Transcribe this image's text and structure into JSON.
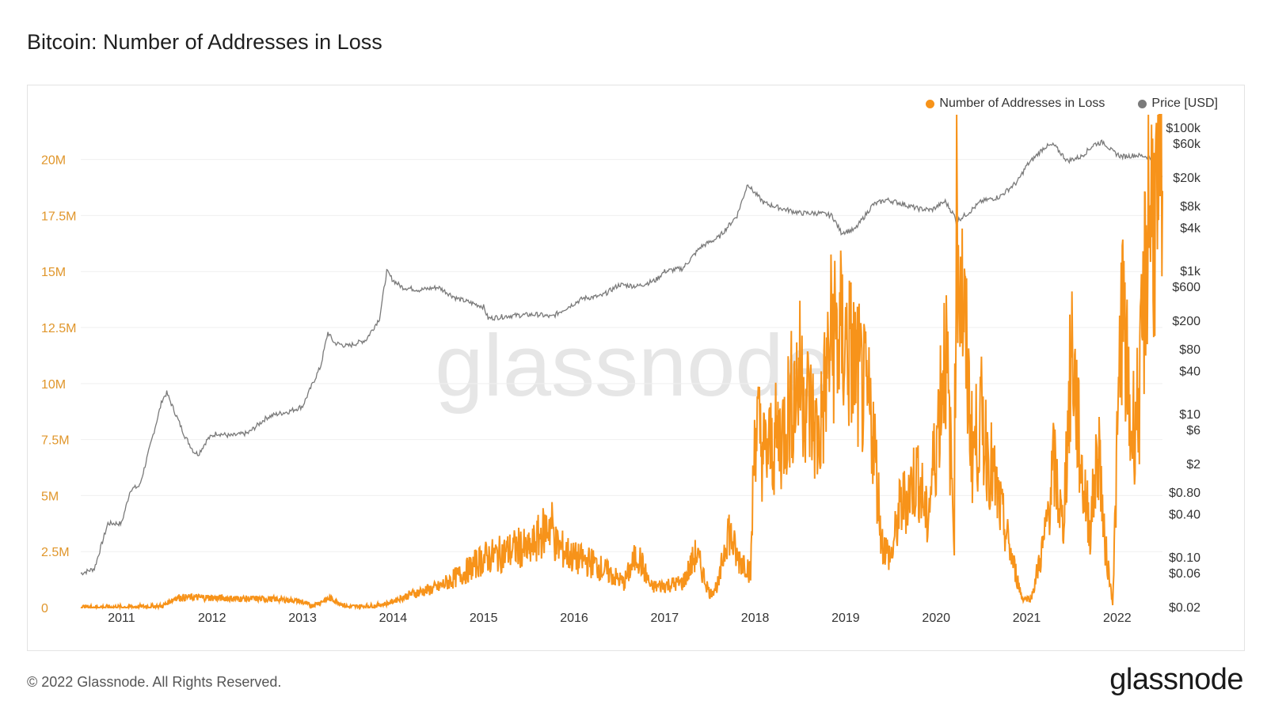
{
  "title": "Bitcoin: Number of Addresses in Loss",
  "footer": "© 2022 Glassnode. All Rights Reserved.",
  "brand": "glassnode",
  "watermark": "glassnode",
  "colors": {
    "loss": "#f7931a",
    "price": "#7a7a7a",
    "lossAxis": "#e0962b",
    "grid": "#efefef"
  },
  "chart_data": {
    "type": "line",
    "title": "Bitcoin: Number of Addresses in Loss",
    "legend_position": "top-right",
    "x_range": [
      2010.55,
      2022.5
    ],
    "x_ticks": [
      "2011",
      "2012",
      "2013",
      "2014",
      "2015",
      "2016",
      "2017",
      "2018",
      "2019",
      "2020",
      "2021",
      "2022"
    ],
    "left_axis": {
      "name": "Number of Addresses in Loss",
      "ylim": [
        0,
        22000000
      ],
      "ticks": [
        {
          "v": 0,
          "label": "0"
        },
        {
          "v": 2500000,
          "label": "2.5M"
        },
        {
          "v": 5000000,
          "label": "5M"
        },
        {
          "v": 7500000,
          "label": "7.5M"
        },
        {
          "v": 10000000,
          "label": "10M"
        },
        {
          "v": 12500000,
          "label": "12.5M"
        },
        {
          "v": 15000000,
          "label": "15M"
        },
        {
          "v": 17500000,
          "label": "17.5M"
        },
        {
          "v": 20000000,
          "label": "20M"
        }
      ]
    },
    "right_axis": {
      "name": "Price [USD]",
      "scale": "log",
      "ylim": [
        0.02,
        100000
      ],
      "ticks": [
        {
          "v": 100000,
          "label": "$100k"
        },
        {
          "v": 60000,
          "label": "$60k"
        },
        {
          "v": 20000,
          "label": "$20k"
        },
        {
          "v": 8000,
          "label": "$8k"
        },
        {
          "v": 4000,
          "label": "$4k"
        },
        {
          "v": 1000,
          "label": "$1k"
        },
        {
          "v": 600,
          "label": "$600"
        },
        {
          "v": 200,
          "label": "$200"
        },
        {
          "v": 80,
          "label": "$80"
        },
        {
          "v": 40,
          "label": "$40"
        },
        {
          "v": 10,
          "label": "$10"
        },
        {
          "v": 6,
          "label": "$6"
        },
        {
          "v": 2,
          "label": "$2"
        },
        {
          "v": 0.8,
          "label": "$0.80"
        },
        {
          "v": 0.4,
          "label": "$0.40"
        },
        {
          "v": 0.1,
          "label": "$0.10"
        },
        {
          "v": 0.06,
          "label": "$0.06"
        },
        {
          "v": 0.02,
          "label": "$0.02"
        }
      ]
    },
    "series": [
      {
        "name": "Number of Addresses in Loss",
        "axis": "left",
        "x": [
          2010.55,
          2011.0,
          2011.45,
          2011.6,
          2011.9,
          2012.3,
          2012.7,
          2012.95,
          2013.1,
          2013.3,
          2013.5,
          2013.8,
          2013.95,
          2014.2,
          2014.5,
          2014.8,
          2015.0,
          2015.2,
          2015.4,
          2015.5,
          2015.7,
          2015.75,
          2015.8,
          2016.0,
          2016.2,
          2016.4,
          2016.55,
          2016.7,
          2016.85,
          2017.0,
          2017.2,
          2017.35,
          2017.5,
          2017.6,
          2017.7,
          2017.8,
          2017.9,
          2017.95,
          2018.0,
          2018.1,
          2018.3,
          2018.4,
          2018.5,
          2018.7,
          2018.85,
          2019.0,
          2019.1,
          2019.3,
          2019.4,
          2019.5,
          2019.6,
          2019.8,
          2019.9,
          2020.0,
          2020.1,
          2020.2,
          2020.22,
          2020.3,
          2020.4,
          2020.5,
          2020.7,
          2020.85,
          2020.95,
          2021.05,
          2021.2,
          2021.3,
          2021.4,
          2021.5,
          2021.6,
          2021.7,
          2021.8,
          2021.85,
          2021.95,
          2022.05,
          2022.15,
          2022.25,
          2022.35,
          2022.45,
          2022.5
        ],
        "values": [
          20000,
          20000,
          60000,
          450000,
          450000,
          400000,
          380000,
          300000,
          80000,
          420000,
          30000,
          80000,
          200000,
          600000,
          900000,
          1600000,
          2200000,
          2400000,
          2700000,
          2500000,
          3600000,
          3800000,
          2800000,
          2200000,
          2000000,
          1500000,
          1100000,
          2400000,
          900000,
          1000000,
          1100000,
          2400000,
          600000,
          1100000,
          3600000,
          2200000,
          2000000,
          1500000,
          8500000,
          6800000,
          7800000,
          9300000,
          10400000,
          7400000,
          12300000,
          11800000,
          10800000,
          8200000,
          2900000,
          2200000,
          4400000,
          6000000,
          3800000,
          7400000,
          11900000,
          3400000,
          17600000,
          13200000,
          7000000,
          8300000,
          4500000,
          2000000,
          400000,
          400000,
          3100000,
          6400000,
          3500000,
          11700000,
          6300000,
          3500000,
          7400000,
          3300000,
          200000,
          13800000,
          7700000,
          9500000,
          18400000,
          17000000,
          18600000
        ]
      },
      {
        "name": "Price [USD]",
        "axis": "right",
        "x": [
          2010.55,
          2010.7,
          2010.85,
          2011.0,
          2011.1,
          2011.2,
          2011.3,
          2011.45,
          2011.5,
          2011.6,
          2011.7,
          2011.8,
          2011.85,
          2011.95,
          2012.05,
          2012.2,
          2012.4,
          2012.6,
          2012.7,
          2012.85,
          2013.0,
          2013.1,
          2013.2,
          2013.28,
          2013.35,
          2013.5,
          2013.7,
          2013.85,
          2013.93,
          2014.0,
          2014.1,
          2014.3,
          2014.5,
          2014.7,
          2014.9,
          2015.0,
          2015.05,
          2015.3,
          2015.6,
          2015.75,
          2015.9,
          2016.1,
          2016.3,
          2016.5,
          2016.7,
          2016.9,
          2017.0,
          2017.2,
          2017.4,
          2017.6,
          2017.8,
          2017.92,
          2017.96,
          2018.1,
          2018.3,
          2018.5,
          2018.7,
          2018.85,
          2018.95,
          2019.1,
          2019.3,
          2019.45,
          2019.6,
          2019.8,
          2019.95,
          2020.1,
          2020.2,
          2020.22,
          2020.35,
          2020.5,
          2020.7,
          2020.9,
          2021.0,
          2021.2,
          2021.3,
          2021.45,
          2021.6,
          2021.75,
          2021.85,
          2021.95,
          2022.05,
          2022.2,
          2022.35,
          2022.45,
          2022.5
        ],
        "values": [
          0.06,
          0.07,
          0.3,
          0.3,
          0.9,
          1.0,
          3.0,
          16,
          20,
          10,
          5,
          3,
          2.8,
          4.5,
          5.5,
          5.0,
          5.5,
          9,
          10,
          11,
          13,
          25,
          47,
          140,
          100,
          90,
          110,
          220,
          1000,
          750,
          600,
          550,
          600,
          420,
          350,
          320,
          220,
          240,
          250,
          230,
          300,
          420,
          450,
          650,
          620,
          750,
          1000,
          1100,
          2200,
          3000,
          6000,
          17000,
          14000,
          9000,
          7500,
          6500,
          6500,
          6000,
          3500,
          3800,
          8500,
          10000,
          9000,
          7500,
          7200,
          9500,
          6000,
          5000,
          6500,
          9500,
          11000,
          18000,
          30000,
          55000,
          58000,
          35000,
          40000,
          60000,
          64000,
          47000,
          40000,
          42000,
          40000,
          30000,
          21000
        ]
      }
    ]
  }
}
